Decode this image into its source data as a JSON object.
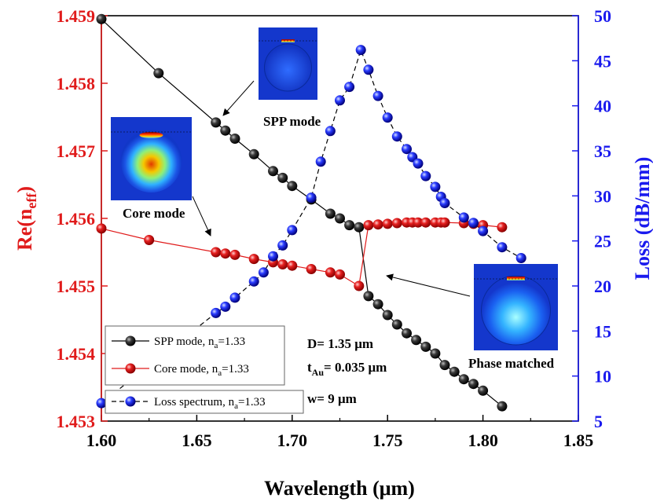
{
  "chart_data": {
    "type": "line",
    "xlabel": "Wavelength (μm)",
    "ylabel_left": "Re(n",
    "ylabel_left_sub": "eff",
    "ylabel_left_end": ")",
    "ylabel_right": "Loss (dB/mm)",
    "xlim": [
      1.6,
      1.85
    ],
    "ylim_left": [
      1.453,
      1.459
    ],
    "ylim_right": [
      5,
      50
    ],
    "x_ticks": [
      "1.60",
      "1.65",
      "1.70",
      "1.75",
      "1.80",
      "1.85"
    ],
    "y_left_ticks": [
      "1.453",
      "1.454",
      "1.455",
      "1.456",
      "1.457",
      "1.458",
      "1.459"
    ],
    "y_right_ticks": [
      "5",
      "10",
      "15",
      "20",
      "25",
      "30",
      "35",
      "40",
      "45",
      "50"
    ],
    "colors": {
      "left_axis": "#e01b1b",
      "right_axis": "#1a1aee",
      "spp": "#000000",
      "core": "#e01b1b",
      "loss": "#1a1aee"
    },
    "series": [
      {
        "name": "SPP mode, n",
        "name_sub": "a",
        "name_end": "=1.33",
        "axis": "left",
        "color": "#000000",
        "style": "solid",
        "x": [
          1.6,
          1.63,
          1.66,
          1.665,
          1.67,
          1.68,
          1.69,
          1.695,
          1.7,
          1.71,
          1.72,
          1.725,
          1.73,
          1.735,
          1.74,
          1.745,
          1.75,
          1.755,
          1.76,
          1.765,
          1.77,
          1.775,
          1.78,
          1.785,
          1.79,
          1.795,
          1.8,
          1.81
        ],
        "y": [
          1.45895,
          1.45815,
          1.45742,
          1.4573,
          1.45718,
          1.45695,
          1.4567,
          1.4566,
          1.45648,
          1.45628,
          1.45607,
          1.456,
          1.4559,
          1.45587,
          1.45485,
          1.45473,
          1.45457,
          1.45443,
          1.4543,
          1.4542,
          1.4541,
          1.454,
          1.45383,
          1.45373,
          1.45362,
          1.45355,
          1.45345,
          1.45322
        ]
      },
      {
        "name": "Core mode, n",
        "name_sub": "a",
        "name_end": "=1.33",
        "axis": "left",
        "color": "#e01b1b",
        "style": "solid",
        "x": [
          1.6,
          1.625,
          1.66,
          1.665,
          1.67,
          1.68,
          1.69,
          1.695,
          1.7,
          1.71,
          1.72,
          1.725,
          1.735,
          1.74,
          1.745,
          1.75,
          1.755,
          1.76,
          1.763,
          1.766,
          1.77,
          1.775,
          1.778,
          1.78,
          1.79,
          1.795,
          1.8,
          1.81
        ],
        "y": [
          1.45585,
          1.45568,
          1.4555,
          1.45548,
          1.45546,
          1.4554,
          1.45535,
          1.45532,
          1.4553,
          1.45525,
          1.4552,
          1.45517,
          1.455,
          1.4559,
          1.45591,
          1.45592,
          1.45593,
          1.45594,
          1.45594,
          1.45594,
          1.45594,
          1.45594,
          1.45594,
          1.45594,
          1.45593,
          1.45592,
          1.4559,
          1.45587
        ]
      },
      {
        "name": "Loss spectrum, n",
        "name_sub": "a",
        "name_end": "=1.33",
        "axis": "right",
        "color": "#1a1aee",
        "style": "dashed",
        "x": [
          1.6,
          1.66,
          1.665,
          1.67,
          1.68,
          1.685,
          1.69,
          1.695,
          1.7,
          1.71,
          1.715,
          1.72,
          1.725,
          1.73,
          1.736,
          1.74,
          1.745,
          1.75,
          1.755,
          1.76,
          1.763,
          1.766,
          1.77,
          1.775,
          1.778,
          1.78,
          1.79,
          1.795,
          1.8,
          1.81,
          1.82
        ],
        "y": [
          7.0,
          17.0,
          17.7,
          18.7,
          20.5,
          21.5,
          23.3,
          24.5,
          26.2,
          29.8,
          33.8,
          37.2,
          40.6,
          42.1,
          46.2,
          44.0,
          41.1,
          38.7,
          36.6,
          35.2,
          34.3,
          33.6,
          32.2,
          31.0,
          29.9,
          29.2,
          27.6,
          27.0,
          26.1,
          24.3,
          23.1
        ]
      }
    ],
    "legend": {
      "placement": "bottom-left"
    },
    "annotations": {
      "spp_mode": "SPP mode",
      "core_mode": "Core mode",
      "phase_matched": "Phase matched",
      "param_d": "D= 1.35 μm",
      "param_t": "t",
      "param_t_sub": "Au",
      "param_t_end": "= 0.035 μm",
      "param_w": "w= 9 μm"
    }
  }
}
